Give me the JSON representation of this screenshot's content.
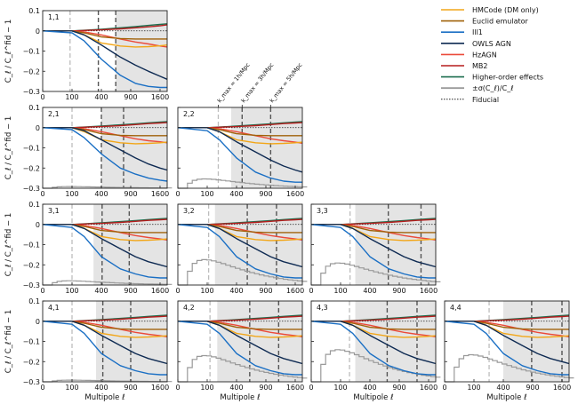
{
  "chart_data": {
    "type": "line",
    "title": "",
    "xlabel": "Multipole ℓ",
    "ylabel": "C_ℓ / C_ℓ^fid − 1",
    "xlim": [
      0,
      1800
    ],
    "ylim": [
      -0.3,
      0.1
    ],
    "x_ticks": [
      "0",
      "100",
      "400",
      "900",
      "1600"
    ],
    "x_tick_values": [
      0,
      100,
      400,
      900,
      1600
    ],
    "y_ticks": [
      "0.1",
      "0",
      "−0.1",
      "−0.2",
      "−0.3"
    ],
    "y_tick_values": [
      0.1,
      0,
      -0.1,
      -0.2,
      -0.3
    ],
    "x_sample": [
      0,
      100,
      200,
      400,
      700,
      1000,
      1300,
      1600,
      1800
    ],
    "legend": [
      {
        "key": "hmcode",
        "name": "HMCode (DM only)",
        "color": "#f2a618",
        "style": "solid"
      },
      {
        "key": "euclid",
        "name": "Euclid emulator",
        "color": "#a0620a",
        "style": "solid"
      },
      {
        "key": "ill",
        "name": "Ill1",
        "color": "#1a6fc4",
        "style": "solid"
      },
      {
        "key": "owls",
        "name": "OWLS AGN",
        "color": "#0e2a52",
        "style": "solid"
      },
      {
        "key": "hzagn",
        "name": "HzAGN",
        "color": "#eb4a3a",
        "style": "solid"
      },
      {
        "key": "mb2",
        "name": "MB2",
        "color": "#b51d1d",
        "style": "solid"
      },
      {
        "key": "hoe",
        "name": "Higher-order effects",
        "color": "#1d6e4f",
        "style": "solid"
      },
      {
        "key": "sigma",
        "name": "±σ(C_ℓ)/C_ℓ",
        "color": "#9a9a9a",
        "style": "step"
      },
      {
        "key": "fiducial",
        "name": "Fiducial",
        "color": "#222222",
        "style": "dotted"
      }
    ],
    "kmax_labels": [
      "k_max = 1h/Mpc",
      "k_max = 3h/Mpc",
      "k_max = 5h/Mpc"
    ],
    "panels": [
      {
        "name": "1,1",
        "row": 0,
        "col": 0,
        "kmax_ell": [
          87,
          360,
          620
        ],
        "shade_from": 620,
        "sigma_peak": null,
        "series": {
          "hmcode": [
            0,
            0,
            -0.02,
            -0.06,
            -0.075,
            -0.08,
            -0.078,
            -0.074,
            -0.07
          ],
          "euclid": [
            0,
            0,
            -0.01,
            -0.03,
            -0.038,
            -0.04,
            -0.04,
            -0.04,
            -0.04
          ],
          "ill": [
            0,
            -0.01,
            -0.05,
            -0.14,
            -0.22,
            -0.26,
            -0.275,
            -0.28,
            -0.28
          ],
          "owls": [
            0,
            0,
            -0.02,
            -0.07,
            -0.13,
            -0.17,
            -0.2,
            -0.225,
            -0.24
          ],
          "hzagn": [
            0,
            0,
            -0.005,
            -0.02,
            -0.04,
            -0.055,
            -0.065,
            -0.075,
            -0.08
          ],
          "mb2": [
            0,
            0,
            0.002,
            0.005,
            0.01,
            0.015,
            0.02,
            0.025,
            0.03
          ],
          "hoe": [
            0,
            0,
            0.003,
            0.008,
            0.015,
            0.021,
            0.027,
            0.032,
            0.035
          ]
        }
      },
      {
        "name": "2,1",
        "row": 1,
        "col": 0,
        "kmax_ell": [
          100,
          400,
          760
        ],
        "shade_from": 400,
        "sigma_peak": 0.01,
        "series": {
          "hmcode": [
            0,
            0,
            -0.02,
            -0.06,
            -0.075,
            -0.08,
            -0.078,
            -0.075,
            -0.072
          ],
          "euclid": [
            0,
            0,
            -0.01,
            -0.03,
            -0.038,
            -0.04,
            -0.04,
            -0.04,
            -0.04
          ],
          "ill": [
            0,
            -0.01,
            -0.05,
            -0.13,
            -0.2,
            -0.23,
            -0.25,
            -0.26,
            -0.265
          ],
          "owls": [
            0,
            0,
            -0.015,
            -0.06,
            -0.11,
            -0.15,
            -0.18,
            -0.2,
            -0.21
          ],
          "hzagn": [
            0,
            0,
            -0.005,
            -0.02,
            -0.04,
            -0.055,
            -0.065,
            -0.07,
            -0.075
          ],
          "mb2": [
            0,
            0,
            0.002,
            0.005,
            0.01,
            0.015,
            0.02,
            0.023,
            0.025
          ],
          "hoe": [
            0,
            0,
            0.003,
            0.008,
            0.014,
            0.019,
            0.024,
            0.028,
            0.03
          ]
        }
      },
      {
        "name": "2,2",
        "row": 1,
        "col": 1,
        "kmax_ell": [
          190,
          480,
          1000
        ],
        "shade_from": 330,
        "sigma_peak": 0.055,
        "series": {
          "hmcode": [
            0,
            0,
            -0.02,
            -0.06,
            -0.075,
            -0.08,
            -0.078,
            -0.075,
            -0.072
          ],
          "euclid": [
            0,
            0,
            -0.01,
            -0.03,
            -0.038,
            -0.04,
            -0.04,
            -0.04,
            -0.04
          ],
          "ill": [
            0,
            -0.015,
            -0.06,
            -0.15,
            -0.22,
            -0.25,
            -0.265,
            -0.27,
            -0.27
          ],
          "owls": [
            0,
            0,
            -0.02,
            -0.07,
            -0.12,
            -0.16,
            -0.19,
            -0.21,
            -0.22
          ],
          "hzagn": [
            0,
            0,
            -0.005,
            -0.02,
            -0.04,
            -0.055,
            -0.065,
            -0.072,
            -0.077
          ],
          "mb2": [
            0,
            0,
            0.002,
            0.005,
            0.01,
            0.015,
            0.02,
            0.023,
            0.025
          ],
          "hoe": [
            0,
            0,
            0.003,
            0.008,
            0.014,
            0.019,
            0.024,
            0.028,
            0.03
          ]
        }
      },
      {
        "name": "3,1",
        "row": 2,
        "col": 0,
        "kmax_ell": [
          100,
          410,
          870
        ],
        "shade_from": 300,
        "sigma_peak": 0.025,
        "series": {
          "hmcode": [
            0,
            0,
            -0.02,
            -0.06,
            -0.075,
            -0.08,
            -0.078,
            -0.075,
            -0.072
          ],
          "euclid": [
            0,
            0,
            -0.01,
            -0.03,
            -0.038,
            -0.04,
            -0.04,
            -0.04,
            -0.04
          ],
          "ill": [
            0,
            -0.015,
            -0.06,
            -0.16,
            -0.22,
            -0.245,
            -0.26,
            -0.265,
            -0.265
          ],
          "owls": [
            0,
            0,
            -0.02,
            -0.07,
            -0.12,
            -0.16,
            -0.185,
            -0.2,
            -0.21
          ],
          "hzagn": [
            0,
            0,
            -0.005,
            -0.02,
            -0.04,
            -0.055,
            -0.065,
            -0.072,
            -0.077
          ],
          "mb2": [
            0,
            0,
            0.002,
            0.005,
            0.01,
            0.015,
            0.02,
            0.023,
            0.025
          ],
          "hoe": [
            0,
            0,
            0.003,
            0.008,
            0.014,
            0.019,
            0.024,
            0.028,
            0.03
          ]
        }
      },
      {
        "name": "3,2",
        "row": 2,
        "col": 1,
        "kmax_ell": [
          110,
          560,
          1130
        ],
        "shade_from": 160,
        "sigma_peak": 0.15,
        "series": {
          "hmcode": [
            0,
            0,
            -0.02,
            -0.06,
            -0.075,
            -0.08,
            -0.078,
            -0.075,
            -0.072
          ],
          "euclid": [
            0,
            0,
            -0.01,
            -0.03,
            -0.038,
            -0.04,
            -0.04,
            -0.04,
            -0.04
          ],
          "ill": [
            0,
            -0.015,
            -0.06,
            -0.16,
            -0.22,
            -0.245,
            -0.26,
            -0.265,
            -0.265
          ],
          "owls": [
            0,
            0,
            -0.02,
            -0.07,
            -0.12,
            -0.16,
            -0.185,
            -0.2,
            -0.21
          ],
          "hzagn": [
            0,
            0,
            -0.005,
            -0.02,
            -0.04,
            -0.055,
            -0.065,
            -0.072,
            -0.077
          ],
          "mb2": [
            0,
            0,
            0.002,
            0.005,
            0.01,
            0.015,
            0.02,
            0.023,
            0.025
          ],
          "hoe": [
            0,
            0,
            0.003,
            0.008,
            0.014,
            0.019,
            0.024,
            0.028,
            0.03
          ]
        }
      },
      {
        "name": "3,3",
        "row": 2,
        "col": 2,
        "kmax_ell": [
          175,
          690,
          1400
        ],
        "shade_from": 225,
        "sigma_peak": 0.13,
        "series": {
          "hmcode": [
            0,
            0,
            -0.02,
            -0.06,
            -0.075,
            -0.08,
            -0.078,
            -0.075,
            -0.072
          ],
          "euclid": [
            0,
            0,
            -0.01,
            -0.03,
            -0.038,
            -0.04,
            -0.04,
            -0.04,
            -0.04
          ],
          "ill": [
            0,
            -0.015,
            -0.06,
            -0.16,
            -0.22,
            -0.245,
            -0.26,
            -0.265,
            -0.265
          ],
          "owls": [
            0,
            0,
            -0.02,
            -0.07,
            -0.12,
            -0.16,
            -0.185,
            -0.2,
            -0.21
          ],
          "hzagn": [
            0,
            0,
            -0.005,
            -0.02,
            -0.04,
            -0.055,
            -0.065,
            -0.072,
            -0.077
          ],
          "mb2": [
            0,
            0,
            0.002,
            0.005,
            0.01,
            0.015,
            0.02,
            0.023,
            0.025
          ],
          "hoe": [
            0,
            0,
            0.003,
            0.008,
            0.014,
            0.019,
            0.024,
            0.028,
            0.03
          ]
        }
      },
      {
        "name": "4,1",
        "row": 3,
        "col": 0,
        "kmax_ell": [
          100,
          420,
          900
        ],
        "shade_from": 330,
        "sigma_peak": 0.01,
        "series": {
          "hmcode": [
            0,
            0,
            -0.02,
            -0.06,
            -0.075,
            -0.08,
            -0.078,
            -0.075,
            -0.072
          ],
          "euclid": [
            0,
            0,
            -0.01,
            -0.03,
            -0.038,
            -0.04,
            -0.04,
            -0.04,
            -0.04
          ],
          "ill": [
            0,
            -0.015,
            -0.06,
            -0.16,
            -0.22,
            -0.245,
            -0.26,
            -0.265,
            -0.265
          ],
          "owls": [
            0,
            0,
            -0.02,
            -0.07,
            -0.12,
            -0.16,
            -0.185,
            -0.2,
            -0.21
          ],
          "hzagn": [
            0,
            0,
            -0.005,
            -0.02,
            -0.04,
            -0.055,
            -0.065,
            -0.072,
            -0.077
          ],
          "mb2": [
            0,
            0,
            0.002,
            0.005,
            0.01,
            0.015,
            0.02,
            0.023,
            0.025
          ],
          "hoe": [
            0,
            0,
            0.003,
            0.008,
            0.014,
            0.019,
            0.024,
            0.028,
            0.03
          ]
        }
      },
      {
        "name": "4,2",
        "row": 3,
        "col": 1,
        "kmax_ell": [
          120,
          600,
          1180
        ],
        "shade_from": 180,
        "sigma_peak": 0.155,
        "series": {
          "hmcode": [
            0,
            0,
            -0.02,
            -0.06,
            -0.075,
            -0.08,
            -0.078,
            -0.075,
            -0.072
          ],
          "euclid": [
            0,
            0,
            -0.01,
            -0.03,
            -0.038,
            -0.04,
            -0.04,
            -0.04,
            -0.04
          ],
          "ill": [
            0,
            -0.015,
            -0.06,
            -0.16,
            -0.22,
            -0.245,
            -0.26,
            -0.265,
            -0.265
          ],
          "owls": [
            0,
            0,
            -0.02,
            -0.07,
            -0.12,
            -0.16,
            -0.185,
            -0.2,
            -0.21
          ],
          "hzagn": [
            0,
            0,
            -0.005,
            -0.02,
            -0.04,
            -0.055,
            -0.065,
            -0.072,
            -0.077
          ],
          "mb2": [
            0,
            0,
            0.002,
            0.005,
            0.01,
            0.015,
            0.02,
            0.023,
            0.025
          ],
          "hoe": [
            0,
            0,
            0.003,
            0.008,
            0.014,
            0.019,
            0.024,
            0.028,
            0.03
          ]
        }
      },
      {
        "name": "4,3",
        "row": 3,
        "col": 2,
        "kmax_ell": [
          170,
          670,
          1300
        ],
        "shade_from": 225,
        "sigma_peak": 0.19,
        "series": {
          "hmcode": [
            0,
            0,
            -0.02,
            -0.06,
            -0.075,
            -0.08,
            -0.078,
            -0.075,
            -0.072
          ],
          "euclid": [
            0,
            0,
            -0.01,
            -0.03,
            -0.038,
            -0.04,
            -0.04,
            -0.04,
            -0.04
          ],
          "ill": [
            0,
            -0.015,
            -0.06,
            -0.16,
            -0.22,
            -0.245,
            -0.26,
            -0.265,
            -0.265
          ],
          "owls": [
            0,
            0,
            -0.02,
            -0.07,
            -0.12,
            -0.16,
            -0.185,
            -0.2,
            -0.21
          ],
          "hzagn": [
            0,
            0,
            -0.005,
            -0.02,
            -0.04,
            -0.055,
            -0.065,
            -0.072,
            -0.077
          ],
          "mb2": [
            0,
            0,
            0.002,
            0.005,
            0.01,
            0.015,
            0.02,
            0.023,
            0.025
          ],
          "hoe": [
            0,
            0,
            0.003,
            0.008,
            0.014,
            0.019,
            0.024,
            0.028,
            0.03
          ]
        }
      },
      {
        "name": "4,4",
        "row": 3,
        "col": 3,
        "kmax_ell": [
          230,
          880,
          1600
        ],
        "shade_from": 400,
        "sigma_peak": 0.16,
        "series": {
          "hmcode": [
            0,
            0,
            -0.02,
            -0.06,
            -0.075,
            -0.08,
            -0.078,
            -0.075,
            -0.072
          ],
          "euclid": [
            0,
            0,
            -0.01,
            -0.03,
            -0.038,
            -0.04,
            -0.04,
            -0.04,
            -0.04
          ],
          "ill": [
            0,
            -0.015,
            -0.06,
            -0.16,
            -0.22,
            -0.245,
            -0.26,
            -0.265,
            -0.265
          ],
          "owls": [
            0,
            0,
            -0.02,
            -0.07,
            -0.12,
            -0.16,
            -0.185,
            -0.2,
            -0.21
          ],
          "hzagn": [
            0,
            0,
            -0.005,
            -0.02,
            -0.04,
            -0.055,
            -0.065,
            -0.072,
            -0.077
          ],
          "mb2": [
            0,
            0,
            0.002,
            0.005,
            0.01,
            0.015,
            0.02,
            0.023,
            0.025
          ],
          "hoe": [
            0,
            0,
            0.003,
            0.008,
            0.014,
            0.019,
            0.024,
            0.028,
            0.03
          ]
        }
      }
    ]
  }
}
